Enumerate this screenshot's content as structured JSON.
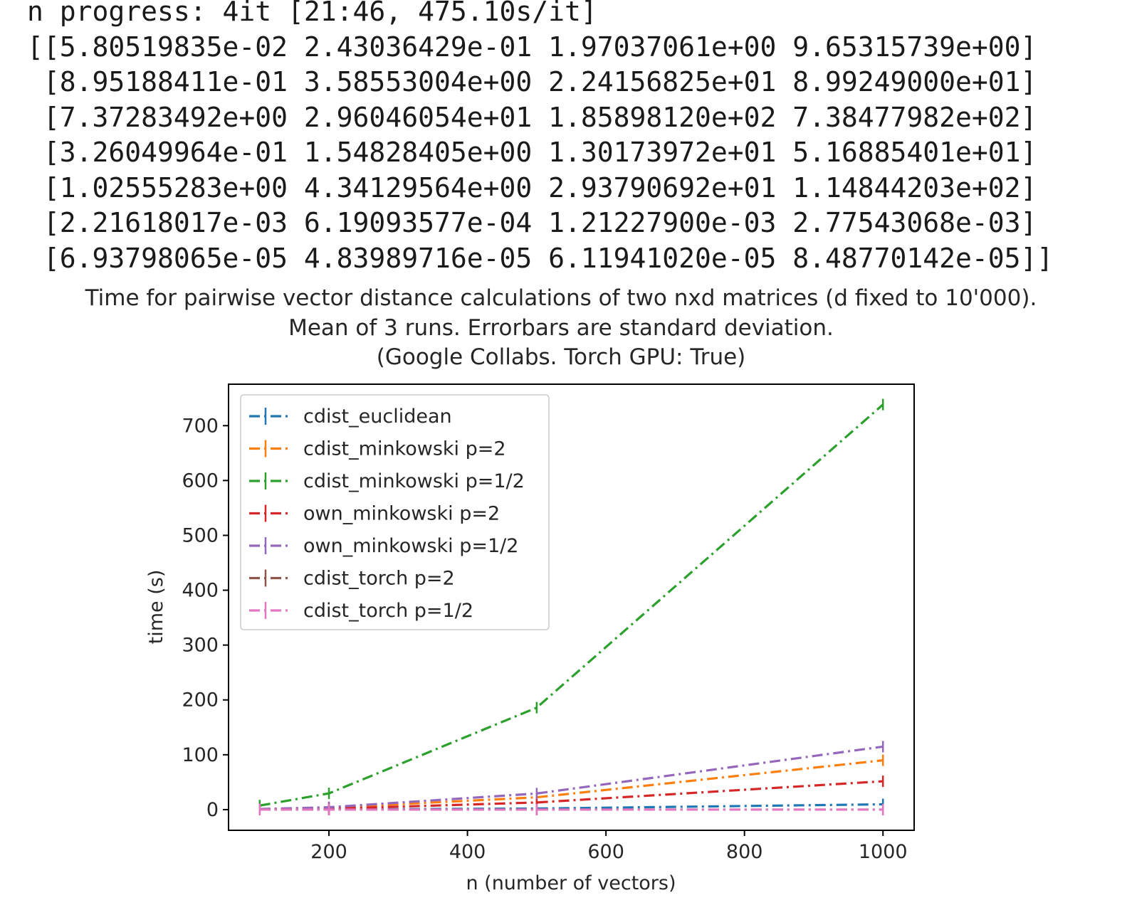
{
  "console": {
    "progress": "n progress: 4it [21:46, 475.10s/it]",
    "matrix_lines": [
      "[[5.80519835e-02 2.43036429e-01 1.97037061e+00 9.65315739e+00]",
      " [8.95188411e-01 3.58553004e+00 2.24156825e+01 8.99249000e+01]",
      " [7.37283492e+00 2.96046054e+01 1.85898120e+02 7.38477982e+02]",
      " [3.26049964e-01 1.54828405e+00 1.30173972e+01 5.16885401e+01]",
      " [1.02555283e+00 4.34129564e+00 2.93790692e+01 1.14844203e+02]",
      " [2.21618017e-03 6.19093577e-04 1.21227900e-03 2.77543068e-03]",
      " [6.93798065e-05 4.83989716e-05 6.11941020e-05 8.48770142e-05]]"
    ]
  },
  "chart_data": {
    "type": "line",
    "title": [
      "Time for pairwise vector distance calculations of two nxd matrices (d fixed to 10'000).",
      "Mean of 3 runs. Errorbars are standard deviation.",
      "(Google Collabs. Torch GPU: True)"
    ],
    "xlabel": "n (number of vectors)",
    "ylabel": "time (s)",
    "x": [
      100,
      200,
      500,
      1000
    ],
    "xlim": [
      55,
      1045
    ],
    "ylim": [
      -37.7,
      775.6
    ],
    "xticks": [
      200,
      400,
      600,
      800,
      1000
    ],
    "yticks": [
      0,
      100,
      200,
      300,
      400,
      500,
      600,
      700
    ],
    "grid": false,
    "legend_position": "top-left",
    "line_style": "dash-dot",
    "series": [
      {
        "name": "cdist_euclidean",
        "color": "#1f77b4",
        "values": [
          0.0580519835,
          0.243036429,
          1.97037061,
          9.65315739
        ]
      },
      {
        "name": "cdist_minkowski p=2",
        "color": "#ff7f0e",
        "values": [
          0.895188411,
          3.58553004,
          22.4156825,
          89.9249
        ]
      },
      {
        "name": "cdist_minkowski p=1/2",
        "color": "#2ca02c",
        "values": [
          7.37283492,
          29.6046054,
          185.89812,
          738.477982
        ]
      },
      {
        "name": "own_minkowski p=2",
        "color": "#d62728",
        "values": [
          0.326049964,
          1.54828405,
          13.0173972,
          51.6885401
        ]
      },
      {
        "name": "own_minkowski p=1/2",
        "color": "#9467bd",
        "values": [
          1.02555283,
          4.34129564,
          29.3790692,
          114.844203
        ]
      },
      {
        "name": "cdist_torch p=2",
        "color": "#8c564b",
        "values": [
          0.00221618017,
          0.000619093577,
          0.001212279,
          0.00277543068
        ]
      },
      {
        "name": "cdist_torch p=1/2",
        "color": "#e377c2",
        "values": [
          6.93798065e-05,
          4.83989716e-05,
          6.1194102e-05,
          8.48770142e-05
        ]
      }
    ]
  }
}
